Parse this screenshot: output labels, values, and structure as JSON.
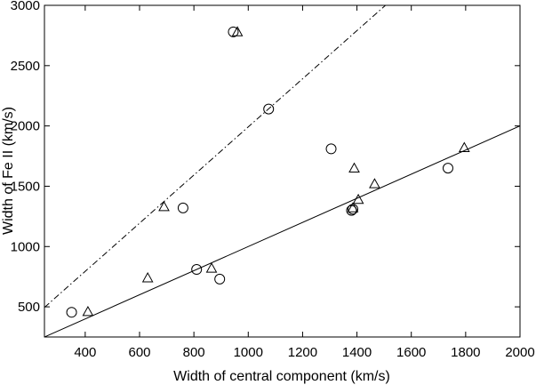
{
  "chart_data": {
    "type": "scatter",
    "title": "",
    "xlabel": "Width of central component (km/s)",
    "ylabel": "Width of Fe II (km/s)",
    "xlim": [
      250,
      2000
    ],
    "ylim": [
      250,
      3000
    ],
    "xticks": [
      400,
      600,
      800,
      1000,
      1200,
      1400,
      1600,
      1800,
      2000
    ],
    "yticks": [
      500,
      1000,
      1500,
      2000,
      2500,
      3000
    ],
    "grid": false,
    "legend": "none",
    "series": [
      {
        "marker": "circle",
        "points": [
          {
            "x": 350,
            "y": 455
          },
          {
            "x": 760,
            "y": 1320
          },
          {
            "x": 810,
            "y": 810
          },
          {
            "x": 895,
            "y": 730
          },
          {
            "x": 945,
            "y": 2780
          },
          {
            "x": 1075,
            "y": 2140
          },
          {
            "x": 1305,
            "y": 1810
          },
          {
            "x": 1380,
            "y": 1300
          },
          {
            "x": 1385,
            "y": 1310
          },
          {
            "x": 1735,
            "y": 1650
          }
        ]
      },
      {
        "marker": "triangle",
        "points": [
          {
            "x": 410,
            "y": 460
          },
          {
            "x": 630,
            "y": 740
          },
          {
            "x": 690,
            "y": 1330
          },
          {
            "x": 865,
            "y": 820
          },
          {
            "x": 960,
            "y": 2780
          },
          {
            "x": 1385,
            "y": 1320
          },
          {
            "x": 1390,
            "y": 1650
          },
          {
            "x": 1405,
            "y": 1390
          },
          {
            "x": 1465,
            "y": 1520
          },
          {
            "x": 1795,
            "y": 1820
          }
        ]
      }
    ],
    "lines": [
      {
        "style": "solid",
        "x": [
          250,
          2000
        ],
        "y": [
          250,
          2000
        ]
      },
      {
        "style": "dash-dot",
        "x": [
          250,
          1505
        ],
        "y": [
          495,
          3000
        ]
      }
    ]
  }
}
